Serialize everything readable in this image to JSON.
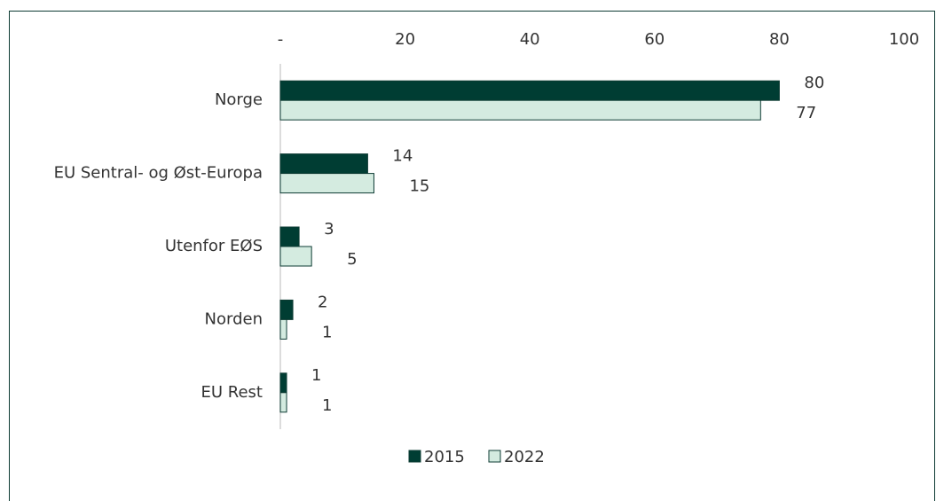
{
  "chart_data": {
    "type": "bar",
    "orientation": "horizontal",
    "categories": [
      "Norge",
      "EU Sentral- og Øst-Europa",
      "Utenfor EØS",
      "Norden",
      "EU Rest"
    ],
    "series": [
      {
        "name": "2015",
        "color": "#003d33",
        "values": [
          80,
          14,
          3,
          2,
          1
        ]
      },
      {
        "name": "2022",
        "color": "#d4ebe0",
        "values": [
          77,
          15,
          5,
          1,
          1
        ]
      }
    ],
    "xlim": [
      0,
      100
    ],
    "xticks": [
      {
        "value": 0,
        "label": "-"
      },
      20,
      40,
      60,
      80,
      100
    ],
    "legend": "bottom"
  }
}
